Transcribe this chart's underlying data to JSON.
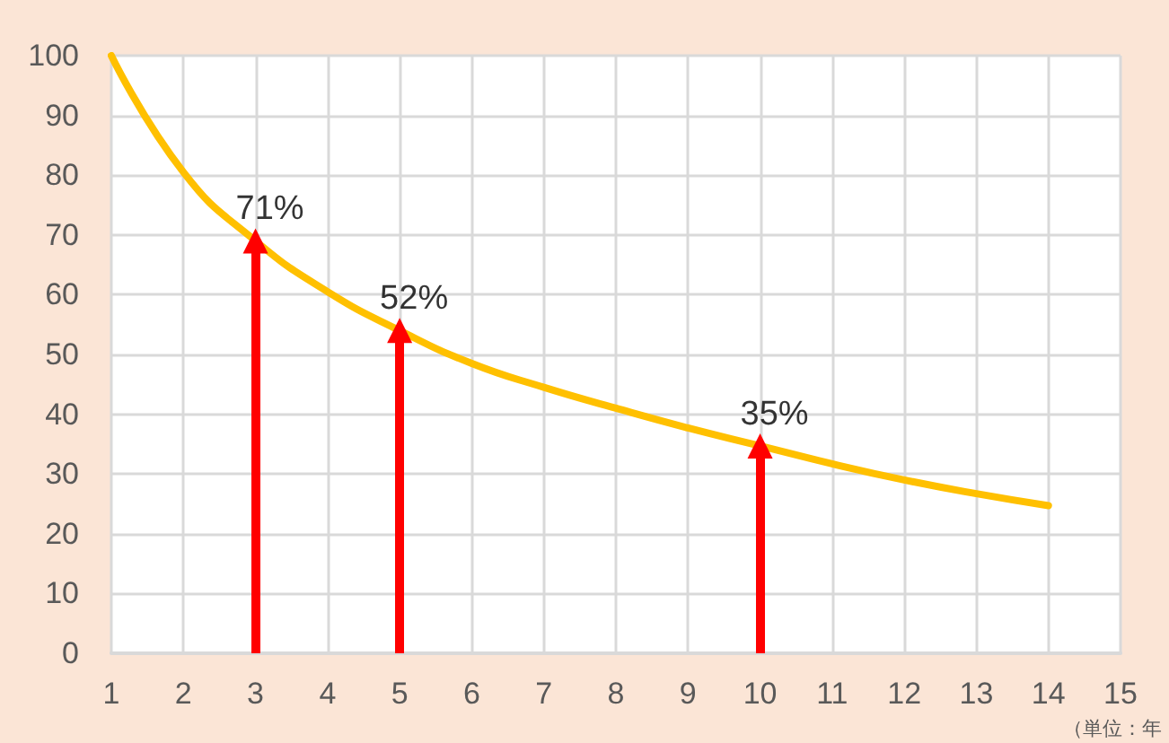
{
  "chart_data": {
    "type": "line",
    "x": [
      1,
      2,
      3,
      4,
      5,
      6,
      7,
      8,
      9,
      10,
      11,
      12,
      13,
      14
    ],
    "series": [
      {
        "color": "#ffc000",
        "values": [
          100,
          80.5,
          69,
          60.5,
          54,
          48.5,
          44.5,
          41,
          37.7,
          34.7,
          31.7,
          29,
          26.7,
          24.7
        ]
      }
    ],
    "xlim": [
      1,
      15
    ],
    "xticks": [
      1,
      2,
      3,
      4,
      5,
      6,
      7,
      8,
      9,
      10,
      11,
      12,
      13,
      14,
      15
    ],
    "ylim": [
      0,
      100
    ],
    "yticks": [
      0,
      10,
      20,
      30,
      40,
      50,
      60,
      70,
      80,
      90,
      100
    ],
    "grid": true,
    "marker": "none",
    "line_style": "solid",
    "annotations": [
      {
        "text": "71%",
        "x": 3,
        "y": 69
      },
      {
        "text": "52%",
        "x": 5,
        "y": 54
      },
      {
        "text": "35%",
        "x": 10,
        "y": 34.7
      },
      "（単位：年"
    ]
  }
}
